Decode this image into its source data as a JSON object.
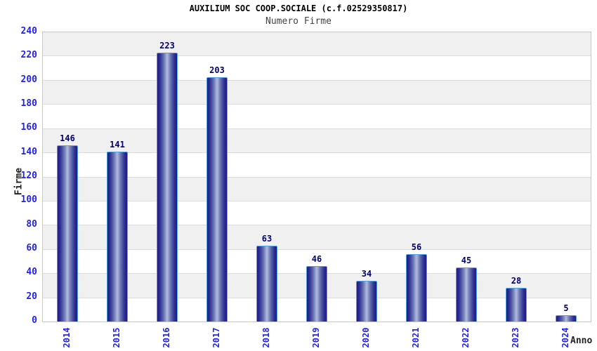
{
  "chart_data": {
    "type": "bar",
    "title": "AUXILIUM SOC COOP.SOCIALE (c.f.02529350817)",
    "subtitle": "Numero Firme",
    "xlabel": "Anno",
    "ylabel": "Firme",
    "categories": [
      "2014",
      "2015",
      "2016",
      "2017",
      "2018",
      "2019",
      "2020",
      "2021",
      "2022",
      "2023",
      "2024"
    ],
    "values": [
      146,
      141,
      223,
      203,
      63,
      46,
      34,
      56,
      45,
      28,
      5
    ],
    "ylim": [
      0,
      240
    ],
    "ytick_step": 20,
    "yticks": [
      0,
      20,
      40,
      60,
      80,
      100,
      120,
      140,
      160,
      180,
      200,
      220,
      240
    ],
    "grid": true,
    "legend": "none",
    "colors": {
      "bar_edge": "#1c1c84",
      "bar_center": "#b2bcde",
      "bar_border": "#52a0e6",
      "tick_label": "#2222ee",
      "value_label": "#00006e",
      "axis_title": "#222222",
      "band_gray": "#f0f0f0",
      "band_white": "#ffffff",
      "gridline": "#dcdcdc",
      "plot_border": "#c8c8c8",
      "title": "#000000",
      "subtitle": "#444444"
    }
  }
}
